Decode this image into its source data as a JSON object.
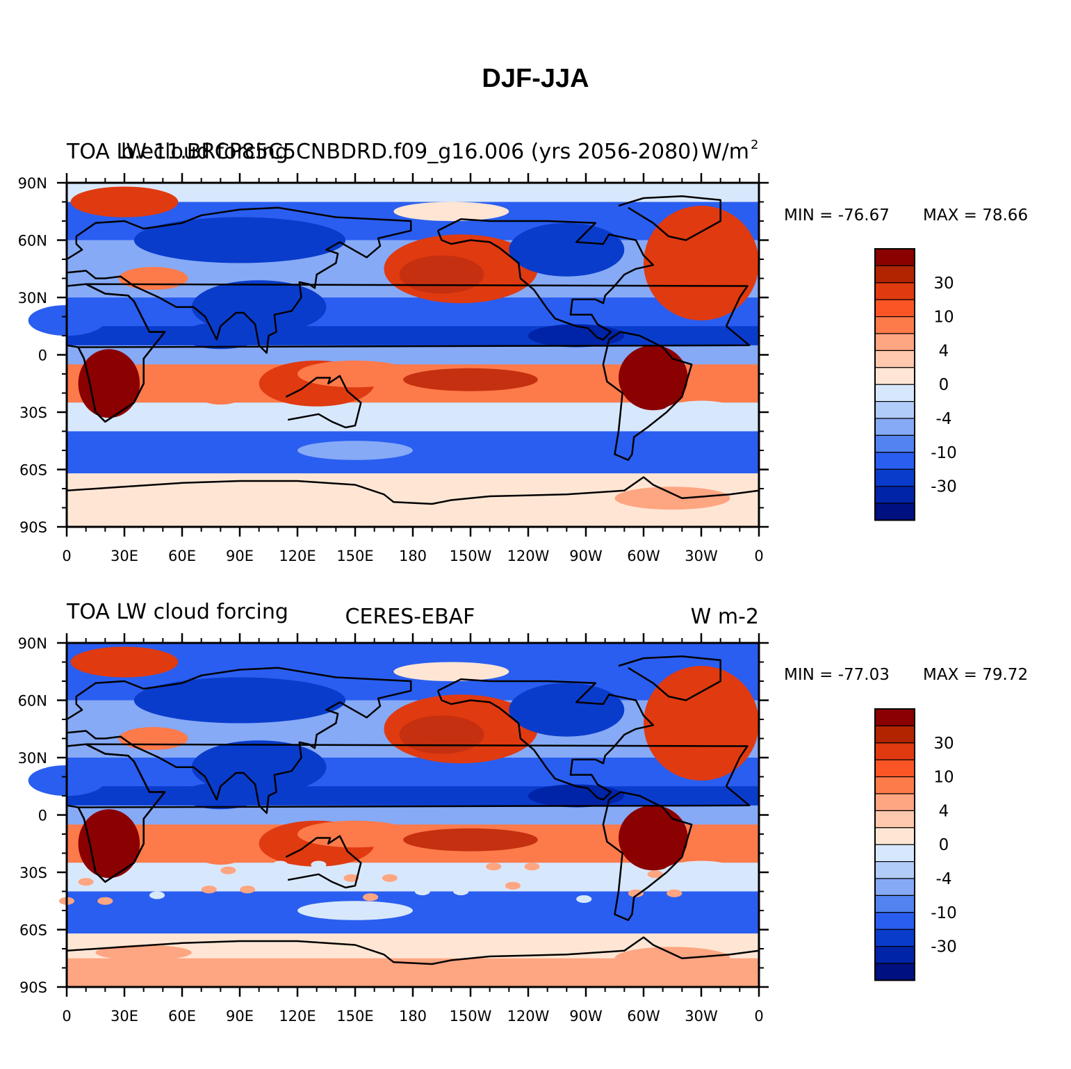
{
  "title": "DJF-JJA",
  "panels": [
    {
      "left_title": "TOA LW cloud forcing",
      "center_title": "b.e11.BRCP85C5CNBDRD.f09_g16.006 (yrs 2056-2080)",
      "right_title": "W/m",
      "right_title_sup": "2",
      "min_label": "MIN = -76.67",
      "max_label": "MAX =  78.66"
    },
    {
      "left_title": "TOA LW cloud forcing",
      "center_title": "CERES-EBAF",
      "right_title": "W m-2",
      "right_title_sup": "",
      "min_label": "MIN = -77.03",
      "max_label": "MAX =  79.72"
    }
  ],
  "lat_labels": [
    "90N",
    "60N",
    "30N",
    "0",
    "30S",
    "60S",
    "90S"
  ],
  "lon_labels": [
    "0",
    "30E",
    "60E",
    "90E",
    "120E",
    "150E",
    "180",
    "150W",
    "120W",
    "90W",
    "60W",
    "30W",
    "0"
  ],
  "colorbar": {
    "colors": [
      "#8b0000",
      "#b22400",
      "#e03a10",
      "#fb5526",
      "#fd7a4a",
      "#fea582",
      "#fec9ac",
      "#ffe6d4",
      "#d8e8fc",
      "#b2ccfa",
      "#86aaf6",
      "#5283f0",
      "#2a5ef0",
      "#0a3ccc",
      "#0024a8",
      "#00107e"
    ],
    "labels": [
      "30",
      "10",
      "4",
      "0",
      "-4",
      "-10",
      "-30"
    ]
  },
  "palette": {
    "dark_red": "#8b0000",
    "red": "#e03a10",
    "orange": "#fd7a4a",
    "salmon": "#fea582",
    "pale": "#ffe6d4",
    "pale_blue": "#d8e8fc",
    "light_blue": "#86aaf6",
    "blue": "#2a5ef0",
    "dark_blue": "#0a3ccc"
  }
}
